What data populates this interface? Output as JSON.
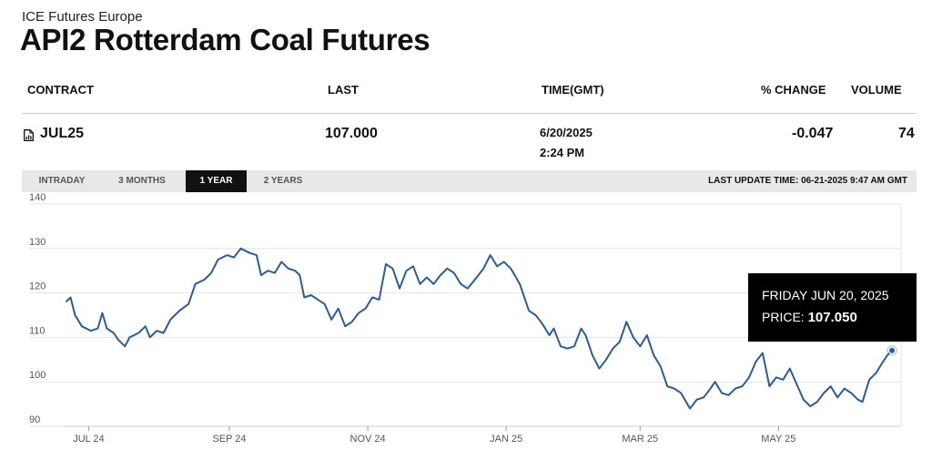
{
  "header": {
    "exchange": "ICE Futures Europe",
    "title": "API2 Rotterdam Coal Futures"
  },
  "table": {
    "columns": [
      "CONTRACT",
      "LAST",
      "TIME(GMT)",
      "% CHANGE",
      "VOLUME"
    ],
    "row": {
      "icon": "document-chart-icon",
      "contract": "JUL25",
      "last": "107.000",
      "date": "6/20/2025",
      "time": "2:24 PM",
      "change": "-0.047",
      "volume": "74"
    }
  },
  "tabs": [
    "INTRADAY",
    "3 MONTHS",
    "1 YEAR",
    "2 YEARS"
  ],
  "active_tab": "1 YEAR",
  "last_update": "LAST UPDATE TIME: 06-21-2025 9:47 AM GMT",
  "tooltip": {
    "date": "FRIDAY JUN 20, 2025",
    "label": "PRICE:",
    "price": "107.050"
  },
  "colors": {
    "line": "#2b5c95",
    "grid": "#e3e3e3",
    "tooltip_bg": "#000000"
  },
  "chart_data": {
    "type": "line",
    "ylim": [
      90,
      140
    ],
    "yticks": [
      90,
      100,
      110,
      120,
      130,
      140
    ],
    "xlim": [
      "2024-06-20",
      "2025-06-24"
    ],
    "xticks": [
      {
        "date": "2024-07-01",
        "label": "JUL 24"
      },
      {
        "date": "2024-09-01",
        "label": "SEP 24"
      },
      {
        "date": "2024-11-01",
        "label": "NOV 24"
      },
      {
        "date": "2025-01-01",
        "label": "JAN 25"
      },
      {
        "date": "2025-03-01",
        "label": "MAR 25"
      },
      {
        "date": "2025-05-01",
        "label": "MAY 25"
      }
    ],
    "grid": true,
    "highlight": {
      "date": "2025-06-20",
      "value": 107.05
    },
    "series": [
      {
        "name": "",
        "points": [
          [
            "2024-06-21",
            118
          ],
          [
            "2024-06-23",
            119
          ],
          [
            "2024-06-25",
            115
          ],
          [
            "2024-06-28",
            112.5
          ],
          [
            "2024-07-02",
            111.5
          ],
          [
            "2024-07-05",
            112
          ],
          [
            "2024-07-07",
            115.5
          ],
          [
            "2024-07-09",
            112
          ],
          [
            "2024-07-12",
            111
          ],
          [
            "2024-07-14",
            109.5
          ],
          [
            "2024-07-17",
            108
          ],
          [
            "2024-07-19",
            110
          ],
          [
            "2024-07-23",
            111
          ],
          [
            "2024-07-26",
            112.5
          ],
          [
            "2024-07-28",
            110
          ],
          [
            "2024-07-31",
            111.5
          ],
          [
            "2024-08-03",
            111
          ],
          [
            "2024-08-06",
            114
          ],
          [
            "2024-08-10",
            116
          ],
          [
            "2024-08-14",
            117.5
          ],
          [
            "2024-08-17",
            122
          ],
          [
            "2024-08-21",
            123
          ],
          [
            "2024-08-24",
            124.5
          ],
          [
            "2024-08-27",
            127.5
          ],
          [
            "2024-08-31",
            128.5
          ],
          [
            "2024-09-03",
            128
          ],
          [
            "2024-09-06",
            130
          ],
          [
            "2024-09-10",
            129
          ],
          [
            "2024-09-13",
            128.5
          ],
          [
            "2024-09-15",
            124
          ],
          [
            "2024-09-18",
            125
          ],
          [
            "2024-09-21",
            124.5
          ],
          [
            "2024-09-24",
            127
          ],
          [
            "2024-09-27",
            125.5
          ],
          [
            "2024-09-30",
            125
          ],
          [
            "2024-10-02",
            124
          ],
          [
            "2024-10-04",
            119
          ],
          [
            "2024-10-07",
            119.5
          ],
          [
            "2024-10-10",
            118.5
          ],
          [
            "2024-10-13",
            117.5
          ],
          [
            "2024-10-16",
            114
          ],
          [
            "2024-10-19",
            116.5
          ],
          [
            "2024-10-22",
            112.5
          ],
          [
            "2024-10-25",
            113.5
          ],
          [
            "2024-10-28",
            115.5
          ],
          [
            "2024-10-31",
            116.5
          ],
          [
            "2024-11-03",
            119
          ],
          [
            "2024-11-06",
            118.5
          ],
          [
            "2024-11-09",
            126.5
          ],
          [
            "2024-11-12",
            125.5
          ],
          [
            "2024-11-15",
            121
          ],
          [
            "2024-11-18",
            125
          ],
          [
            "2024-11-21",
            126
          ],
          [
            "2024-11-24",
            122
          ],
          [
            "2024-11-27",
            123.5
          ],
          [
            "2024-11-30",
            122
          ],
          [
            "2024-12-03",
            124
          ],
          [
            "2024-12-06",
            125.5
          ],
          [
            "2024-12-09",
            124.5
          ],
          [
            "2024-12-12",
            122
          ],
          [
            "2024-12-15",
            121
          ],
          [
            "2024-12-19",
            123.5
          ],
          [
            "2024-12-22",
            125.5
          ],
          [
            "2024-12-25",
            128.5
          ],
          [
            "2024-12-28",
            126
          ],
          [
            "2024-12-31",
            127
          ],
          [
            "2025-01-03",
            125.5
          ],
          [
            "2025-01-07",
            122
          ],
          [
            "2025-01-11",
            116
          ],
          [
            "2025-01-14",
            115
          ],
          [
            "2025-01-17",
            113
          ],
          [
            "2025-01-20",
            110.5
          ],
          [
            "2025-01-22",
            112
          ],
          [
            "2025-01-25",
            108
          ],
          [
            "2025-01-28",
            107.5
          ],
          [
            "2025-01-31",
            108
          ],
          [
            "2025-02-03",
            112
          ],
          [
            "2025-02-05",
            110.5
          ],
          [
            "2025-02-08",
            106
          ],
          [
            "2025-02-11",
            103
          ],
          [
            "2025-02-14",
            105
          ],
          [
            "2025-02-17",
            107.5
          ],
          [
            "2025-02-20",
            109
          ],
          [
            "2025-02-23",
            113.5
          ],
          [
            "2025-02-26",
            110
          ],
          [
            "2025-03-01",
            108
          ],
          [
            "2025-03-04",
            110.5
          ],
          [
            "2025-03-07",
            106
          ],
          [
            "2025-03-10",
            103.5
          ],
          [
            "2025-03-13",
            99
          ],
          [
            "2025-03-16",
            98.5
          ],
          [
            "2025-03-19",
            97.5
          ],
          [
            "2025-03-23",
            94
          ],
          [
            "2025-03-26",
            96
          ],
          [
            "2025-03-29",
            96.5
          ],
          [
            "2025-04-01",
            98.5
          ],
          [
            "2025-04-03",
            100
          ],
          [
            "2025-04-06",
            97.5
          ],
          [
            "2025-04-09",
            97
          ],
          [
            "2025-04-12",
            98.5
          ],
          [
            "2025-04-15",
            99
          ],
          [
            "2025-04-18",
            101
          ],
          [
            "2025-04-21",
            104.5
          ],
          [
            "2025-04-24",
            106.5
          ],
          [
            "2025-04-27",
            99
          ],
          [
            "2025-04-30",
            101
          ],
          [
            "2025-05-03",
            100.5
          ],
          [
            "2025-05-06",
            103
          ],
          [
            "2025-05-09",
            99.5
          ],
          [
            "2025-05-12",
            96
          ],
          [
            "2025-05-15",
            94.5
          ],
          [
            "2025-05-18",
            95.5
          ],
          [
            "2025-05-21",
            97.5
          ],
          [
            "2025-05-24",
            99
          ],
          [
            "2025-05-27",
            96.5
          ],
          [
            "2025-05-30",
            98.5
          ],
          [
            "2025-06-02",
            97.5
          ],
          [
            "2025-06-05",
            96
          ],
          [
            "2025-06-07",
            95.5
          ],
          [
            "2025-06-10",
            100.5
          ],
          [
            "2025-06-13",
            102
          ],
          [
            "2025-06-16",
            104.5
          ],
          [
            "2025-06-18",
            106
          ],
          [
            "2025-06-20",
            107.05
          ]
        ]
      }
    ]
  }
}
